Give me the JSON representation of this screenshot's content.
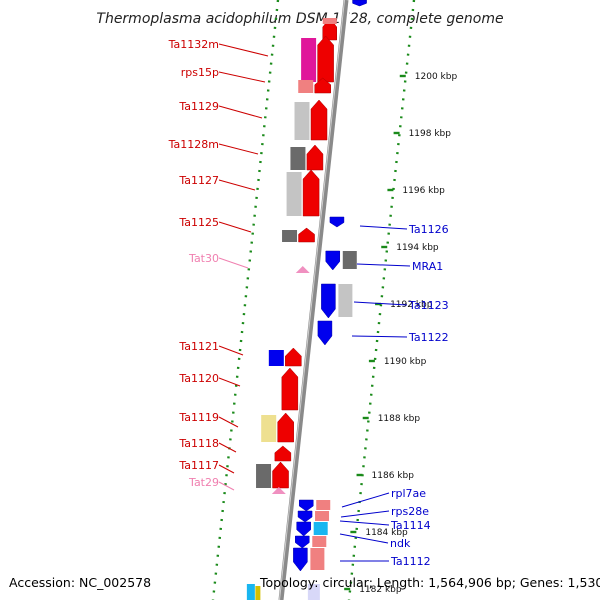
{
  "title": "Thermoplasma acidophilum DSM 1728, complete genome",
  "footer": {
    "accession": "Accession: NC_002578",
    "topology": "Topology: circular; Length: 1,564,906 bp; Genes: 1,530"
  },
  "colors": {
    "forward_label": "#cc0000",
    "reverse_label": "#0000cc",
    "rna_label": "#f080b0",
    "forward_gene": "#ee0000",
    "reverse_gene": "#0000ee",
    "backbone": "#888888",
    "tick": "#1a8a1a"
  },
  "kbp_marks": [
    {
      "label": "1200 kbp"
    },
    {
      "label": "1198 kbp"
    },
    {
      "label": "1196 kbp"
    },
    {
      "label": "1194 kbp"
    },
    {
      "label": "1192 kbp"
    },
    {
      "label": "1190 kbp"
    },
    {
      "label": "1188 kbp"
    },
    {
      "label": "1186 kbp"
    },
    {
      "label": "1184 kbp"
    },
    {
      "label": "1182 kbp"
    }
  ],
  "forward_genes": [
    {
      "name": "Ta1132m",
      "cog": "magenta"
    },
    {
      "name": "rps15p",
      "cog": "salmon"
    },
    {
      "name": "Ta1129",
      "cog": "lightgray"
    },
    {
      "name": "Ta1128m",
      "cog": "darkgray"
    },
    {
      "name": "Ta1127",
      "cog": "lightgray"
    },
    {
      "name": "Ta1125",
      "cog": "darkgray"
    },
    {
      "name": "Tat30",
      "type": "tRNA"
    },
    {
      "name": "Ta1121",
      "cog": "blue"
    },
    {
      "name": "Ta1120",
      "cog": "none"
    },
    {
      "name": "Ta1119",
      "cog": "khaki"
    },
    {
      "name": "Ta1118",
      "cog": "none"
    },
    {
      "name": "Ta1117",
      "cog": "darkgray"
    },
    {
      "name": "Tat29",
      "type": "tRNA"
    }
  ],
  "reverse_genes": [
    {
      "name": "Ta1126",
      "cog": "none"
    },
    {
      "name": "MRA1",
      "cog": "darkgray"
    },
    {
      "name": "Ta1123",
      "cog": "lightgray"
    },
    {
      "name": "Ta1122",
      "cog": "none"
    },
    {
      "name": "rpl7ae",
      "cog": "salmon"
    },
    {
      "name": "rps28e",
      "cog": "salmon"
    },
    {
      "name": "Ta1114",
      "cog": "cyan"
    },
    {
      "name": "ndk",
      "cog": "salmon"
    },
    {
      "name": "Ta1112",
      "cog": "salmon"
    }
  ]
}
